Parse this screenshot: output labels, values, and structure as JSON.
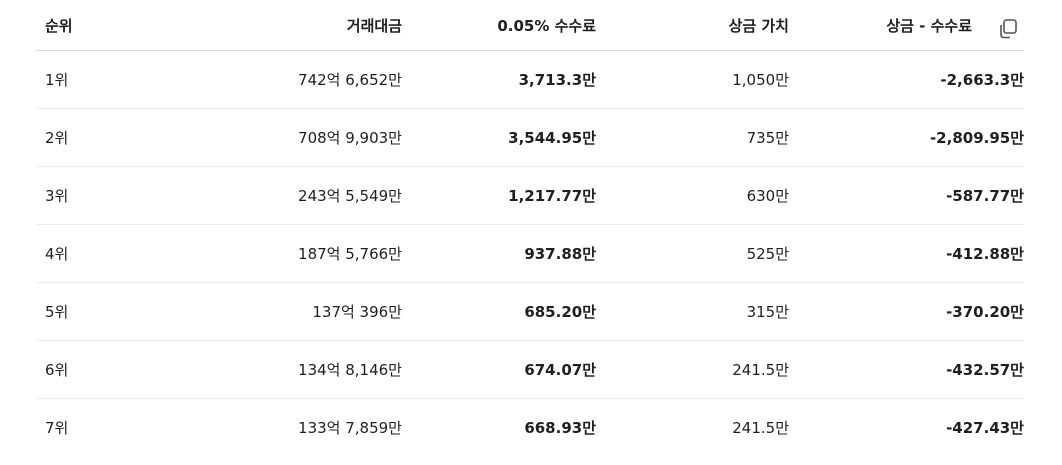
{
  "table": {
    "headers": [
      "순위",
      "거래대금",
      "0.05% 수수료",
      "상금 가치",
      "상금 - 수수료"
    ],
    "rows": [
      [
        "1위",
        "742억 6,652만",
        "3,713.3만",
        "1,050만",
        "-2,663.3만"
      ],
      [
        "2위",
        "708억 9,903만",
        "3,544.95만",
        "735만",
        "-2,809.95만"
      ],
      [
        "3위",
        "243억 5,549만",
        "1,217.77만",
        "630만",
        "-587.77만"
      ],
      [
        "4위",
        "187억 5,766만",
        "937.88만",
        "525만",
        "-412.88만"
      ],
      [
        "5위",
        "137억 396만",
        "685.20만",
        "315만",
        "-370.20만"
      ],
      [
        "6위",
        "134억 8,146만",
        "674.07만",
        "241.5만",
        "-432.57만"
      ],
      [
        "7위",
        "133억 7,859만",
        "668.93만",
        "241.5만",
        "-427.43만"
      ]
    ]
  }
}
